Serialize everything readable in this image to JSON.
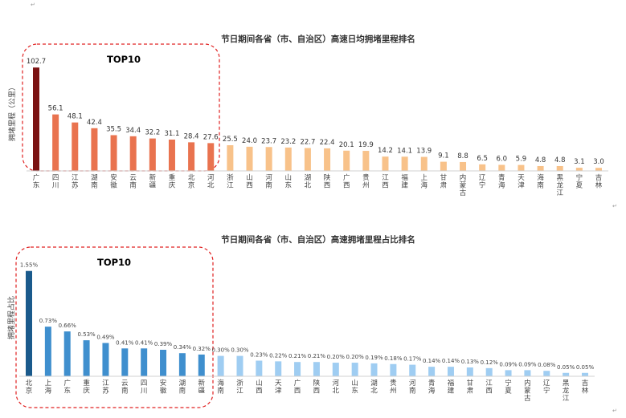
{
  "chart_data": [
    {
      "type": "bar",
      "title": "节日期间各省（市、自治区）高速日均拥堵里程排名",
      "ylabel": "拥堵里程（公里）",
      "xlabel": "",
      "highlight_label": "TOP10",
      "categories": [
        "广东",
        "四川",
        "江苏",
        "湖南",
        "安徽",
        "云南",
        "新疆",
        "重庆",
        "北京",
        "河北",
        "浙江",
        "山西",
        "河南",
        "山东",
        "湖北",
        "陕西",
        "广西",
        "贵州",
        "江西",
        "福建",
        "上海",
        "甘肃",
        "内蒙古",
        "辽宁",
        "青海",
        "天津",
        "海南",
        "黑龙江",
        "宁夏",
        "吉林"
      ],
      "values": [
        102.7,
        56.1,
        48.1,
        42.4,
        35.5,
        34.4,
        32.2,
        31.1,
        28.4,
        27.6,
        25.5,
        24.0,
        23.7,
        23.2,
        22.7,
        22.4,
        20.1,
        19.9,
        14.2,
        14.1,
        13.9,
        9.1,
        8.8,
        6.5,
        6.0,
        5.9,
        4.8,
        4.8,
        3.1,
        3.0
      ],
      "value_labels": [
        "102.7",
        "56.1",
        "48.1",
        "42.4",
        "35.5",
        "34.4",
        "32.2",
        "31.1",
        "28.4",
        "27.6",
        "25.5",
        "24.0",
        "23.7",
        "23.2",
        "22.7",
        "22.4",
        "20.1",
        "19.9",
        "14.2",
        "14.1",
        "13.9",
        "9.1",
        "8.8",
        "6.5",
        "6.0",
        "5.9",
        "4.8",
        "4.8",
        "3.1",
        "3.0"
      ],
      "ylim": [
        0,
        110
      ],
      "colors": {
        "first": "#7b1212",
        "top": "#e9734f",
        "rest": "#f8c28a"
      }
    },
    {
      "type": "bar",
      "title": "节日期间各省（市、自治区）高速拥堵里程占比排名",
      "ylabel": "拥堵里程占比",
      "xlabel": "",
      "highlight_label": "TOP10",
      "categories": [
        "北京",
        "上海",
        "广东",
        "重庆",
        "江苏",
        "云南",
        "四川",
        "安徽",
        "湖南",
        "新疆",
        "海南",
        "浙江",
        "山西",
        "天津",
        "广西",
        "陕西",
        "河北",
        "山东",
        "湖北",
        "贵州",
        "河南",
        "青海",
        "福建",
        "甘肃",
        "江西",
        "宁夏",
        "内蒙古",
        "辽宁",
        "黑龙江",
        "吉林"
      ],
      "values": [
        1.55,
        0.73,
        0.66,
        0.53,
        0.49,
        0.41,
        0.41,
        0.39,
        0.34,
        0.32,
        0.3,
        0.3,
        0.23,
        0.22,
        0.21,
        0.21,
        0.2,
        0.2,
        0.19,
        0.18,
        0.17,
        0.14,
        0.14,
        0.13,
        0.12,
        0.09,
        0.09,
        0.08,
        0.05,
        0.05
      ],
      "value_labels": [
        "1.55%",
        "0.73%",
        "0.66%",
        "0.53%",
        "0.49%",
        "0.41%",
        "0.41%",
        "0.39%",
        "0.34%",
        "0.32%",
        "0.30%",
        "0.30%",
        "0.23%",
        "0.22%",
        "0.21%",
        "0.21%",
        "0.20%",
        "0.20%",
        "0.19%",
        "0.18%",
        "0.17%",
        "0.14%",
        "0.14%",
        "0.13%",
        "0.12%",
        "0.09%",
        "0.09%",
        "0.08%",
        "0.05%",
        "0.05%"
      ],
      "ylim": [
        0,
        1.7
      ],
      "colors": {
        "first": "#1a5a8c",
        "top": "#3f8fce",
        "rest": "#9fcdf2"
      }
    }
  ],
  "marks": [
    "↵",
    "↵",
    "↵"
  ]
}
